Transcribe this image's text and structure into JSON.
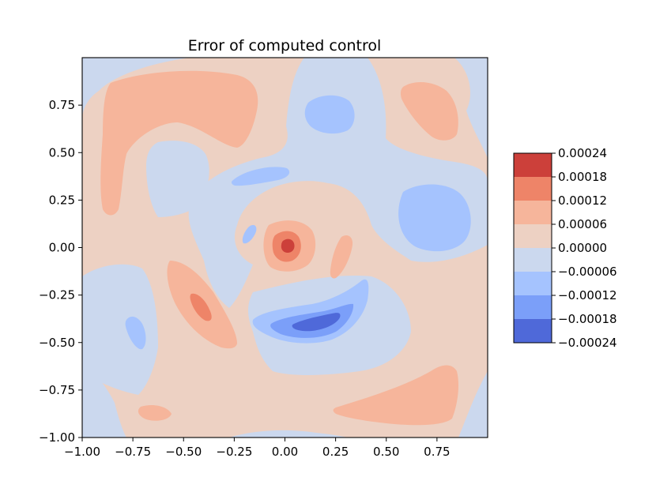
{
  "chart_data": {
    "type": "heatmap",
    "subtype": "filled-contour",
    "title": "Error of computed control",
    "xlabel": "",
    "ylabel": "",
    "xlim": [
      -1.0,
      1.0
    ],
    "ylim": [
      -1.0,
      1.0
    ],
    "x_ticks": [
      "−1.00",
      "−0.75",
      "−0.50",
      "−0.25",
      "0.00",
      "0.25",
      "0.50",
      "0.75"
    ],
    "x_tick_values": [
      -1.0,
      -0.75,
      -0.5,
      -0.25,
      0.0,
      0.25,
      0.5,
      0.75
    ],
    "y_ticks": [
      "0.75",
      "0.50",
      "0.25",
      "0.00",
      "−0.25",
      "−0.50",
      "−0.75",
      "−1.00"
    ],
    "y_tick_values": [
      0.75,
      0.5,
      0.25,
      0.0,
      -0.25,
      -0.5,
      -0.75,
      -1.0
    ],
    "grid": false,
    "colormap": "coolwarm",
    "colorbar": {
      "placement": "right",
      "levels": [
        0.00024,
        0.00018,
        0.00012,
        6e-05,
        0.0,
        -6e-05,
        -0.00012,
        -0.00018,
        -0.00024
      ],
      "tick_labels": [
        "0.00024",
        "0.00018",
        "0.00012",
        "0.00006",
        "0.00000",
        "−0.00006",
        "−0.00012",
        "−0.00018",
        "−0.00024"
      ],
      "band_colors": [
        "#cc403a",
        "#ee8468",
        "#f6b59b",
        "#edd1c3",
        "#cbd8ee",
        "#a5c3fe",
        "#7b9ff9",
        "#4f69d9"
      ]
    },
    "features": [
      {
        "sign": "positive",
        "peak": 0.00024,
        "x": 0.02,
        "y": 0.01
      },
      {
        "sign": "negative",
        "peak": -0.00024,
        "x": 0.18,
        "y": -0.4
      },
      {
        "sign": "positive",
        "peak": 0.00012,
        "x": -0.42,
        "y": -0.3
      },
      {
        "sign": "positive",
        "peak": 6e-05,
        "x": -0.65,
        "y": 0.5
      },
      {
        "sign": "positive",
        "peak": 6e-05,
        "x": 0.68,
        "y": 0.7
      },
      {
        "sign": "positive",
        "peak": 6e-05,
        "x": 0.58,
        "y": -0.75
      },
      {
        "sign": "positive",
        "peak": 6e-05,
        "x": 0.28,
        "y": -0.1
      },
      {
        "sign": "negative",
        "peak": -6e-05,
        "x": 0.72,
        "y": 0.15
      },
      {
        "sign": "negative",
        "peak": -6e-05,
        "x": 0.23,
        "y": 0.7
      },
      {
        "sign": "negative",
        "peak": -6e-05,
        "x": -0.06,
        "y": 0.37
      },
      {
        "sign": "negative",
        "peak": -6e-05,
        "x": -0.75,
        "y": -0.45
      }
    ]
  }
}
